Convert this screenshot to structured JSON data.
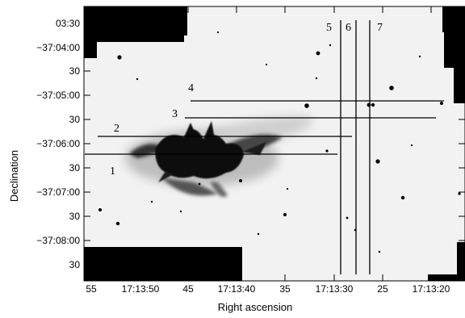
{
  "figure": {
    "xlabel": "Right ascension",
    "ylabel": "Declination",
    "x_ticks": [
      "55",
      "17:13:50",
      "45",
      "17:13:40",
      "35",
      "17:13:30",
      "25",
      "17:13:20"
    ],
    "y_ticks": [
      "03:30",
      "−37:04:00",
      "30",
      "−37:05:00",
      "30",
      "−37:06:00",
      "30",
      "−37:07:00",
      "30",
      "−37:08:00",
      "30"
    ],
    "slits": [
      {
        "id": "1",
        "label": "1"
      },
      {
        "id": "2",
        "label": "2"
      },
      {
        "id": "3",
        "label": "3"
      },
      {
        "id": "4",
        "label": "4"
      },
      {
        "id": "5",
        "label": "5"
      },
      {
        "id": "6",
        "label": "6"
      },
      {
        "id": "7",
        "label": "7"
      }
    ],
    "colors": {
      "background": "#f2f2f2",
      "mask": "#000000",
      "nebula": "#0a0a0a",
      "slit": "#000000"
    }
  }
}
